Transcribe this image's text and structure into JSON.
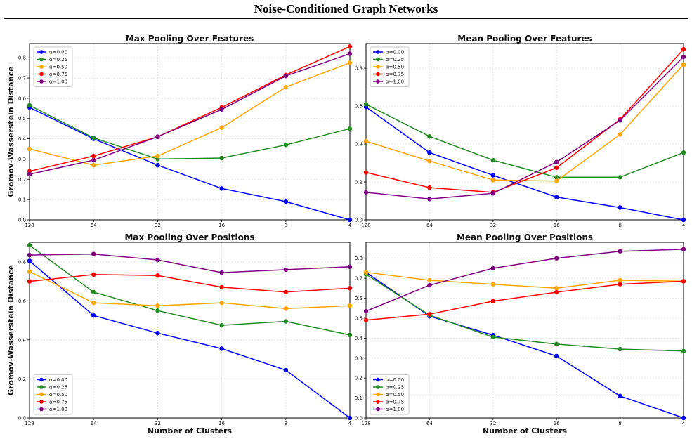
{
  "page_title": "Noise-Conditioned Graph Networks",
  "chart_data": [
    {
      "type": "line",
      "title": "Max Pooling Over Features",
      "xlabel": "",
      "ylabel": "Gromov-Wasserstein Distance",
      "x": [
        128,
        64,
        32,
        16,
        8,
        4
      ],
      "x_ticks": [
        "128",
        "64",
        "32",
        "16",
        "8",
        "4"
      ],
      "x_scale": "log2-reversed",
      "ylim": [
        0,
        0.87
      ],
      "y_ticks": [
        0,
        0.1,
        0.2,
        0.3,
        0.4,
        0.5,
        0.6,
        0.7,
        0.8
      ],
      "y_tick_labels": [
        "0.0",
        "0.1",
        "0.2",
        "0.3",
        "0.4",
        "0.5",
        "0.6",
        "0.7",
        "0.8"
      ],
      "grid": true,
      "legend_position": "top-left",
      "series": [
        {
          "name": "α=0.00",
          "color": "#0000ff",
          "values": [
            0.555,
            0.4,
            0.27,
            0.155,
            0.09,
            0.0
          ]
        },
        {
          "name": "α=0.25",
          "color": "#228b22",
          "values": [
            0.565,
            0.405,
            0.3,
            0.305,
            0.37,
            0.45
          ]
        },
        {
          "name": "α=0.50",
          "color": "#ffa500",
          "values": [
            0.35,
            0.27,
            0.315,
            0.455,
            0.655,
            0.775
          ]
        },
        {
          "name": "α=0.75",
          "color": "#ff0000",
          "values": [
            0.24,
            0.315,
            0.41,
            0.555,
            0.715,
            0.855
          ]
        },
        {
          "name": "α=1.00",
          "color": "#800080",
          "values": [
            0.225,
            0.295,
            0.41,
            0.545,
            0.71,
            0.82
          ]
        }
      ]
    },
    {
      "type": "line",
      "title": "Mean Pooling Over Features",
      "xlabel": "",
      "ylabel": "",
      "x": [
        128,
        64,
        32,
        16,
        8,
        4
      ],
      "x_ticks": [
        "128",
        "64",
        "32",
        "16",
        "8",
        "4"
      ],
      "x_scale": "log2-reversed",
      "ylim": [
        0,
        0.93
      ],
      "y_ticks": [
        0,
        0.2,
        0.4,
        0.6,
        0.8
      ],
      "y_tick_labels": [
        "0.0",
        "0.2",
        "0.4",
        "0.6",
        "0.8"
      ],
      "grid": true,
      "legend_position": "top-left",
      "series": [
        {
          "name": "α=0.00",
          "color": "#0000ff",
          "values": [
            0.595,
            0.355,
            0.235,
            0.12,
            0.065,
            0.0
          ]
        },
        {
          "name": "α=0.25",
          "color": "#228b22",
          "values": [
            0.61,
            0.44,
            0.315,
            0.225,
            0.225,
            0.355
          ]
        },
        {
          "name": "α=0.50",
          "color": "#ffa500",
          "values": [
            0.415,
            0.31,
            0.21,
            0.205,
            0.45,
            0.82
          ]
        },
        {
          "name": "α=0.75",
          "color": "#ff0000",
          "values": [
            0.25,
            0.17,
            0.145,
            0.275,
            0.53,
            0.9
          ]
        },
        {
          "name": "α=1.00",
          "color": "#800080",
          "values": [
            0.145,
            0.11,
            0.14,
            0.305,
            0.525,
            0.86
          ]
        }
      ]
    },
    {
      "type": "line",
      "title": "Max Pooling Over Positions",
      "xlabel": "Number of Clusters",
      "ylabel": "Gromov-Wasserstein Distance",
      "x": [
        128,
        64,
        32,
        16,
        8,
        4
      ],
      "x_ticks": [
        "128",
        "64",
        "32",
        "16",
        "8",
        "4"
      ],
      "x_scale": "log2-reversed",
      "ylim": [
        0,
        0.9
      ],
      "y_ticks": [
        0,
        0.2,
        0.4,
        0.6,
        0.8
      ],
      "y_tick_labels": [
        "0.0",
        "0.2",
        "0.4",
        "0.6",
        "0.8"
      ],
      "grid": true,
      "legend_position": "bottom-left",
      "series": [
        {
          "name": "α=0.00",
          "color": "#0000ff",
          "values": [
            0.805,
            0.525,
            0.435,
            0.355,
            0.245,
            0.0
          ]
        },
        {
          "name": "α=0.25",
          "color": "#228b22",
          "values": [
            0.885,
            0.645,
            0.55,
            0.475,
            0.495,
            0.425
          ]
        },
        {
          "name": "α=0.50",
          "color": "#ffa500",
          "values": [
            0.75,
            0.59,
            0.575,
            0.59,
            0.56,
            0.575
          ]
        },
        {
          "name": "α=0.75",
          "color": "#ff0000",
          "values": [
            0.7,
            0.735,
            0.73,
            0.67,
            0.645,
            0.665
          ]
        },
        {
          "name": "α=1.00",
          "color": "#800080",
          "values": [
            0.835,
            0.84,
            0.81,
            0.745,
            0.76,
            0.775
          ]
        }
      ]
    },
    {
      "type": "line",
      "title": "Mean Pooling Over Positions",
      "xlabel": "Number of Clusters",
      "ylabel": "",
      "x": [
        128,
        64,
        32,
        16,
        8,
        4
      ],
      "x_ticks": [
        "128",
        "64",
        "32",
        "16",
        "8",
        "4"
      ],
      "x_scale": "log2-reversed",
      "ylim": [
        0,
        0.88
      ],
      "y_ticks": [
        0,
        0.1,
        0.2,
        0.3,
        0.4,
        0.5,
        0.6,
        0.7,
        0.8
      ],
      "y_tick_labels": [
        "0.0",
        "0.1",
        "0.2",
        "0.3",
        "0.4",
        "0.5",
        "0.6",
        "0.7",
        "0.8"
      ],
      "grid": true,
      "legend_position": "bottom-left",
      "series": [
        {
          "name": "α=0.00",
          "color": "#0000ff",
          "values": [
            0.73,
            0.51,
            0.415,
            0.31,
            0.11,
            0.0
          ]
        },
        {
          "name": "α=0.25",
          "color": "#228b22",
          "values": [
            0.72,
            0.515,
            0.405,
            0.37,
            0.345,
            0.335
          ]
        },
        {
          "name": "α=0.50",
          "color": "#ffa500",
          "values": [
            0.73,
            0.69,
            0.67,
            0.65,
            0.69,
            0.685
          ]
        },
        {
          "name": "α=0.75",
          "color": "#ff0000",
          "values": [
            0.49,
            0.52,
            0.585,
            0.63,
            0.67,
            0.685
          ]
        },
        {
          "name": "α=1.00",
          "color": "#800080",
          "values": [
            0.535,
            0.665,
            0.75,
            0.8,
            0.835,
            0.845
          ]
        }
      ]
    }
  ]
}
